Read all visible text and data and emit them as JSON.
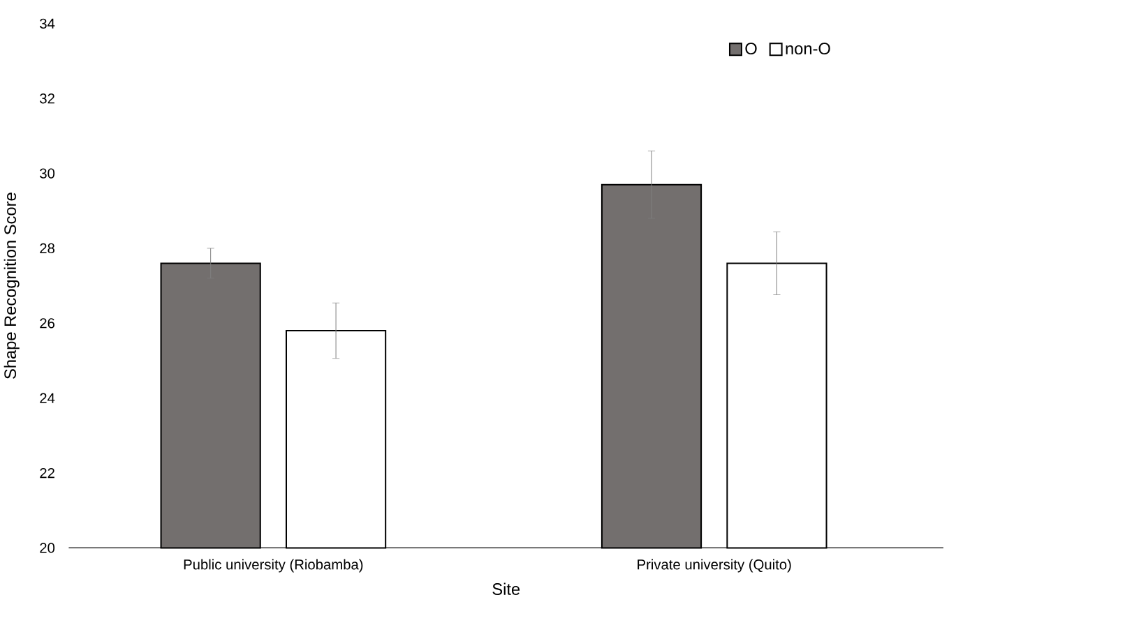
{
  "chart_data": {
    "type": "bar",
    "xlabel": "Site",
    "ylabel": "Shape Recognition Score",
    "categories": [
      "Public university (Riobamba)",
      "Private university (Quito)"
    ],
    "series": [
      {
        "name": "O",
        "color": "#736f6e",
        "values": [
          27.6,
          29.7
        ],
        "errors": [
          0.4,
          0.9
        ]
      },
      {
        "name": "non-O",
        "color": "#ffffff",
        "values": [
          25.8,
          27.6
        ],
        "errors": [
          0.74,
          0.84
        ]
      }
    ],
    "ylim": [
      20,
      34
    ],
    "yticks": [
      20,
      22,
      24,
      26,
      28,
      30,
      32,
      34
    ],
    "grid": false,
    "legend": "top right"
  }
}
